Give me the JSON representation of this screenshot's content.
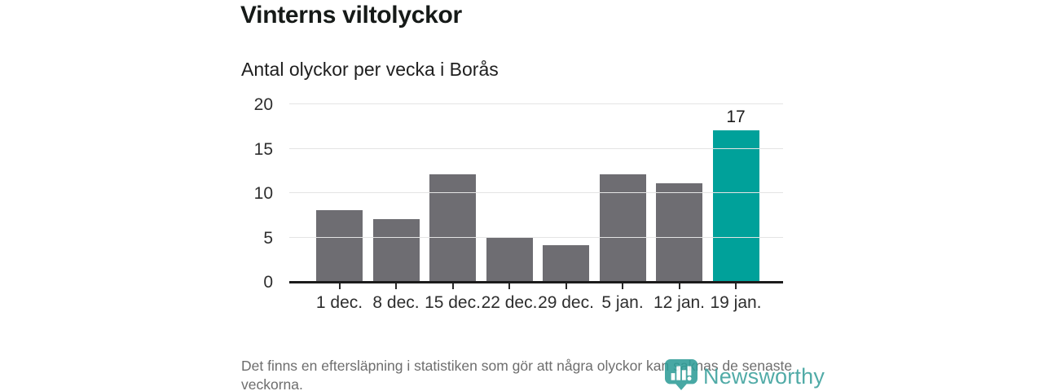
{
  "header": {
    "title": "Vinterns viltolyckor",
    "subtitle": "Antal olyckor per vecka i Borås"
  },
  "chart_data": {
    "type": "bar",
    "categories": [
      "1 dec.",
      "8 dec.",
      "15 dec.",
      "22 dec.",
      "29 dec.",
      "5 jan.",
      "12 jan.",
      "19 jan."
    ],
    "values": [
      8,
      7,
      12,
      5,
      4,
      12,
      11,
      17
    ],
    "title": "Vinterns viltolyckor",
    "subtitle": "Antal olyckor per vecka i Borås",
    "xlabel": "",
    "ylabel": "",
    "ylim": [
      0,
      20
    ],
    "yticks": [
      0,
      5,
      10,
      15,
      20
    ],
    "grid": true,
    "legend": "none",
    "bar_color": "#6e6d72",
    "highlight_color": "#00a19a",
    "highlight_index": 7,
    "highlight_value_label": "17"
  },
  "footer": {
    "note": "Det finns en eftersläpning i statistiken som gör att några olyckor kan saknas de senaste veckorna."
  },
  "branding": {
    "logo_text": "Newsworthy",
    "logo_color": "#3aa09c",
    "logo_icon": "bar-chart-speech-bubble-icon"
  }
}
